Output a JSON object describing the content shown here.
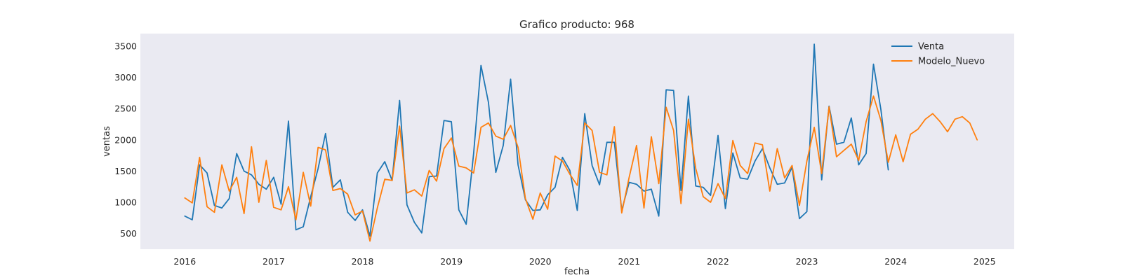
{
  "chart_data": {
    "type": "line",
    "title": "Grafico producto: 968",
    "xlabel": "fecha",
    "ylabel": "ventas",
    "x_ticks": [
      "2016",
      "2017",
      "2018",
      "2019",
      "2020",
      "2021",
      "2022",
      "2023",
      "2024",
      "2025"
    ],
    "y_ticks": [
      "500",
      "1000",
      "1500",
      "2000",
      "2500",
      "3000",
      "3500"
    ],
    "xlim": [
      "2015-07",
      "2025-05"
    ],
    "ylim": [
      250,
      3700
    ],
    "grid": false,
    "background": "#eaeaf2",
    "legend_position": "top-right",
    "x_start": "2016-01",
    "series": [
      {
        "name": "Venta",
        "color": "#1f77b4",
        "values": [
          780,
          720,
          1600,
          1470,
          950,
          910,
          1060,
          1780,
          1500,
          1440,
          1290,
          1210,
          1400,
          970,
          2300,
          560,
          610,
          1090,
          1540,
          2100,
          1240,
          1360,
          840,
          710,
          880,
          460,
          1470,
          1650,
          1350,
          2630,
          960,
          680,
          510,
          1410,
          1420,
          2310,
          2290,
          880,
          650,
          1780,
          3190,
          2600,
          1480,
          1910,
          2970,
          1600,
          1040,
          870,
          880,
          1120,
          1240,
          1720,
          1510,
          870,
          2420,
          1590,
          1280,
          1960,
          1960,
          870,
          1320,
          1290,
          1180,
          1210,
          780,
          2800,
          2790,
          1190,
          2700,
          1260,
          1240,
          1110,
          2070,
          900,
          1790,
          1390,
          1370,
          1660,
          1860,
          1550,
          1290,
          1310,
          1560,
          740,
          850,
          3530,
          1360,
          2540,
          1930,
          1960,
          2350,
          1600,
          1780,
          3210,
          2480,
          1520
        ]
      },
      {
        "name": "Modelo_Nuevo",
        "color": "#ff7f0e",
        "values": [
          1070,
          990,
          1720,
          930,
          840,
          1600,
          1180,
          1400,
          820,
          1890,
          1000,
          1670,
          920,
          880,
          1250,
          720,
          1480,
          940,
          1880,
          1840,
          1190,
          1220,
          1130,
          800,
          860,
          380,
          910,
          1370,
          1350,
          2220,
          1150,
          1200,
          1100,
          1510,
          1340,
          1860,
          2030,
          1580,
          1550,
          1470,
          2200,
          2270,
          2060,
          2010,
          2230,
          1880,
          1060,
          730,
          1150,
          890,
          1740,
          1660,
          1450,
          1270,
          2270,
          2150,
          1480,
          1440,
          2210,
          830,
          1400,
          1910,
          910,
          2050,
          1300,
          2520,
          2150,
          980,
          2330,
          1540,
          1090,
          1000,
          1300,
          1060,
          1990,
          1590,
          1460,
          1950,
          1920,
          1180,
          1860,
          1390,
          1590,
          950,
          1660,
          2200,
          1460,
          2530,
          1730,
          1830,
          1930,
          1670,
          2290,
          2700,
          2310,
          1640,
          2080,
          1650,
          2090,
          2170,
          2330,
          2420,
          2290,
          2130,
          2330,
          2370,
          2270,
          2000
        ]
      }
    ]
  }
}
